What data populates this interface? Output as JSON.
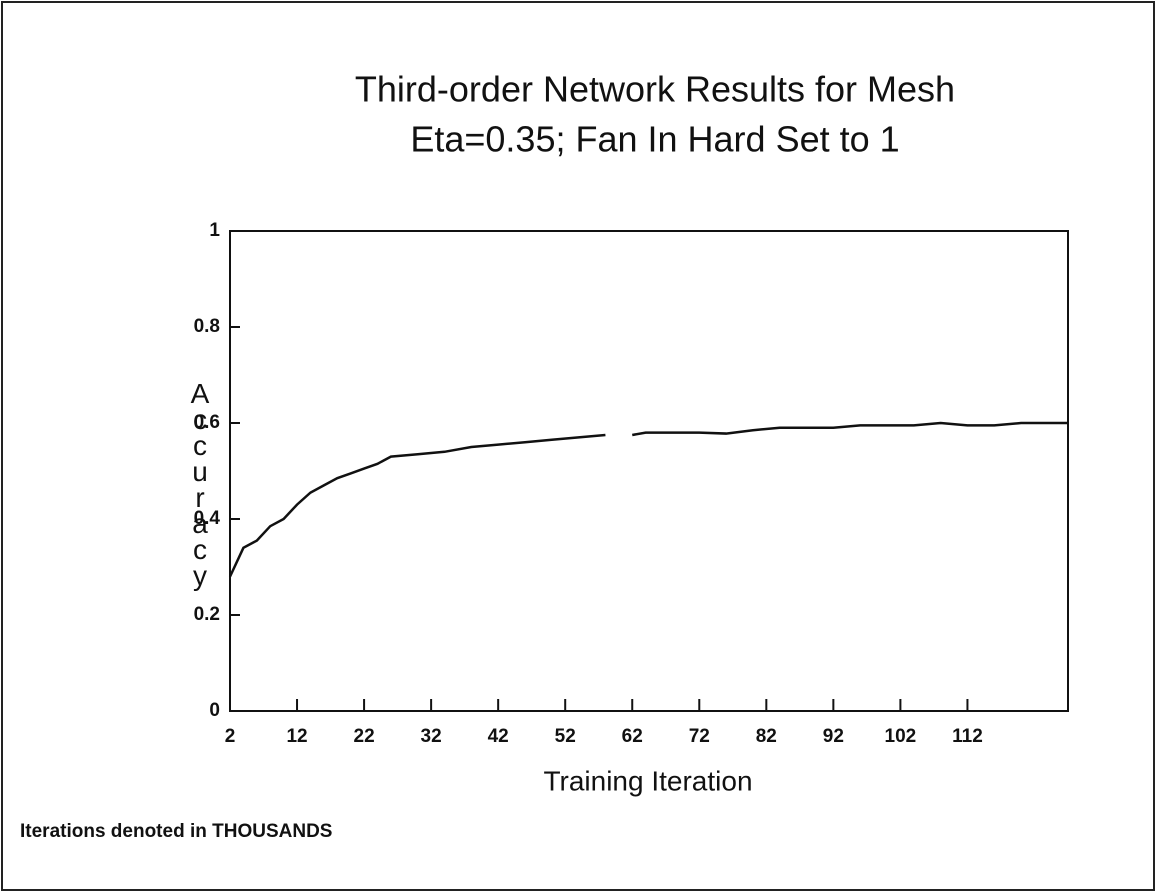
{
  "chart_data": {
    "type": "line",
    "title": "Third-order Network Results for Mesh",
    "subtitle": "Eta=0.35; Fan In Hard Set to 1",
    "x_label": "Training Iteration",
    "y_label": "Accuracy",
    "annotation": "Iterations denoted in THOUSANDS",
    "xlim": [
      2,
      127
    ],
    "ylim": [
      0,
      1
    ],
    "xticks": [
      2,
      12,
      22,
      32,
      42,
      52,
      62,
      72,
      82,
      92,
      102,
      112
    ],
    "yticks": [
      0,
      0.2,
      0.4,
      0.6,
      0.8,
      1
    ],
    "x": [
      2,
      4,
      6,
      8,
      10,
      12,
      14,
      16,
      18,
      20,
      22,
      24,
      26,
      30,
      34,
      38,
      42,
      46,
      50,
      54,
      58,
      60,
      62,
      64,
      68,
      72,
      76,
      80,
      84,
      88,
      92,
      96,
      100,
      104,
      108,
      112,
      116,
      120,
      127
    ],
    "series": [
      {
        "name": "Accuracy",
        "color": "#111111",
        "values": [
          0.28,
          0.34,
          0.355,
          0.385,
          0.4,
          0.43,
          0.455,
          0.47,
          0.485,
          0.495,
          0.505,
          0.515,
          0.53,
          0.535,
          0.54,
          0.55,
          0.555,
          0.56,
          0.565,
          0.57,
          0.575,
          null,
          0.575,
          0.58,
          0.58,
          0.58,
          0.578,
          0.585,
          0.59,
          0.59,
          0.59,
          0.595,
          0.595,
          0.595,
          0.6,
          0.595,
          0.595,
          0.6,
          0.6
        ]
      }
    ]
  }
}
